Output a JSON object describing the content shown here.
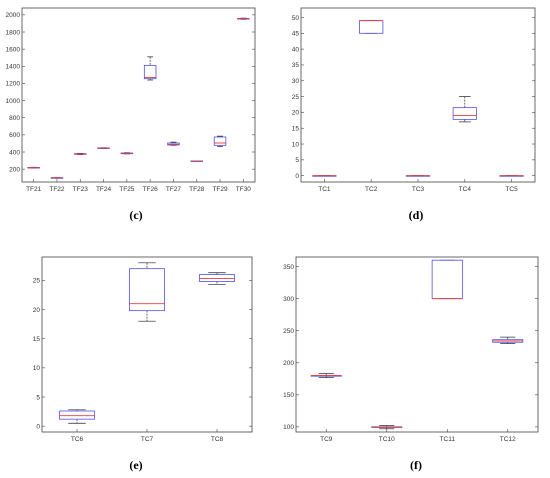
{
  "chart_data": [
    {
      "type": "box",
      "caption": "(c)",
      "title": "",
      "xlabel": "",
      "ylabel": "",
      "categories": [
        "TF21",
        "TF22",
        "TF23",
        "TF24",
        "TF25",
        "TF26",
        "TF27",
        "TF28",
        "TF29",
        "TF30"
      ],
      "yticks": [
        200,
        400,
        600,
        800,
        1000,
        1200,
        1400,
        1600,
        1800,
        2000
      ],
      "ylim": [
        50,
        2080
      ],
      "boxes": [
        {
          "min": 212,
          "q1": 214,
          "median": 217,
          "q3": 220,
          "max": 222
        },
        {
          "min": 100,
          "q1": 100,
          "median": 100,
          "q3": 100,
          "max": 100
        },
        {
          "min": 370,
          "q1": 373,
          "median": 377,
          "q3": 381,
          "max": 384
        },
        {
          "min": 440,
          "q1": 442,
          "median": 445,
          "q3": 448,
          "max": 450
        },
        {
          "min": 378,
          "q1": 380,
          "median": 384,
          "q3": 388,
          "max": 392
        },
        {
          "min": 1240,
          "q1": 1255,
          "median": 1270,
          "q3": 1410,
          "max": 1510
        },
        {
          "min": 478,
          "q1": 482,
          "median": 490,
          "q3": 505,
          "max": 515
        },
        {
          "min": 296,
          "q1": 296,
          "median": 296,
          "q3": 296,
          "max": 296
        },
        {
          "min": 465,
          "q1": 478,
          "median": 505,
          "q3": 575,
          "max": 585
        },
        {
          "min": 1948,
          "q1": 1952,
          "median": 1955,
          "q3": 1958,
          "max": 1962
        }
      ]
    },
    {
      "type": "box",
      "caption": "(d)",
      "title": "",
      "xlabel": "",
      "ylabel": "",
      "categories": [
        "TC1",
        "TC2",
        "TC3",
        "TC4",
        "TC5"
      ],
      "yticks": [
        0,
        5,
        10,
        15,
        20,
        25,
        30,
        35,
        40,
        45,
        50
      ],
      "ylim": [
        -2,
        53
      ],
      "boxes": [
        {
          "min": 0,
          "q1": 0,
          "median": 0,
          "q3": 0,
          "max": 0
        },
        {
          "min": 45,
          "q1": 45,
          "median": 49,
          "q3": 49,
          "max": 49
        },
        {
          "min": 0,
          "q1": 0,
          "median": 0,
          "q3": 0,
          "max": 0
        },
        {
          "min": 17,
          "q1": 17.8,
          "median": 19,
          "q3": 21.5,
          "max": 25
        },
        {
          "min": 0,
          "q1": 0,
          "median": 0,
          "q3": 0,
          "max": 0
        }
      ]
    },
    {
      "type": "box",
      "caption": "(e)",
      "title": "",
      "xlabel": "",
      "ylabel": "",
      "categories": [
        "TC6",
        "TC7",
        "TC8"
      ],
      "yticks": [
        0,
        5,
        10,
        15,
        20,
        25
      ],
      "ylim": [
        -1,
        29
      ],
      "boxes": [
        {
          "min": 0.5,
          "q1": 1.2,
          "median": 1.8,
          "q3": 2.6,
          "max": 2.8
        },
        {
          "min": 18,
          "q1": 19.8,
          "median": 21,
          "q3": 27,
          "max": 28
        },
        {
          "min": 24.3,
          "q1": 24.8,
          "median": 25.3,
          "q3": 26,
          "max": 26.3
        }
      ]
    },
    {
      "type": "box",
      "caption": "(f)",
      "title": "",
      "xlabel": "",
      "ylabel": "",
      "categories": [
        "TC9",
        "TC10",
        "TC11",
        "TC12"
      ],
      "yticks": [
        100,
        150,
        200,
        250,
        300,
        350
      ],
      "ylim": [
        92,
        365
      ],
      "boxes": [
        {
          "min": 177,
          "q1": 180,
          "median": 180,
          "q3": 180,
          "max": 183
        },
        {
          "min": 97,
          "q1": 100,
          "median": 100,
          "q3": 100,
          "max": 102
        },
        {
          "min": 300,
          "q1": 300,
          "median": 300,
          "q3": 360,
          "max": 360
        },
        {
          "min": 230,
          "q1": 232,
          "median": 234,
          "q3": 236,
          "max": 240
        }
      ]
    }
  ]
}
